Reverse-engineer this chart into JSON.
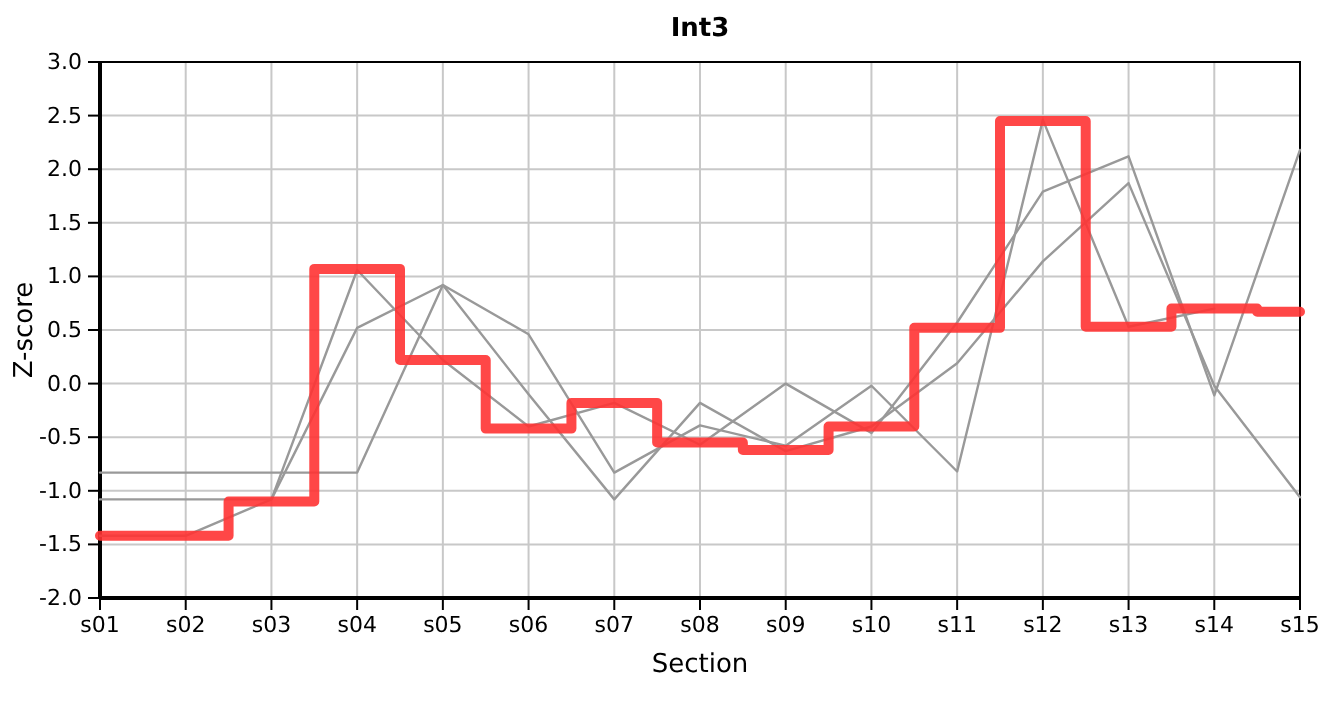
{
  "chart_data": {
    "type": "line",
    "title": "Int3",
    "xlabel": "Section",
    "ylabel": "Z-score",
    "categories": [
      "s01",
      "s02",
      "s03",
      "s04",
      "s05",
      "s06",
      "s07",
      "s08",
      "s09",
      "s10",
      "s11",
      "s12",
      "s13",
      "s14",
      "s15"
    ],
    "ylim": [
      -2,
      3
    ],
    "yticks": [
      {
        "value": -2,
        "label": "-2.0"
      },
      {
        "value": -1.5,
        "label": "-1.5"
      },
      {
        "value": -1,
        "label": "-1.0"
      },
      {
        "value": -0.5,
        "label": "-0.5"
      },
      {
        "value": 0,
        "label": "0.0"
      },
      {
        "value": 0.5,
        "label": "0.5"
      },
      {
        "value": 1,
        "label": "1.0"
      },
      {
        "value": 1.5,
        "label": "1.5"
      },
      {
        "value": 2,
        "label": "2.0"
      },
      {
        "value": 2.5,
        "label": "2.5"
      },
      {
        "value": 3,
        "label": "3.0"
      }
    ],
    "grid": true,
    "series": [
      {
        "color": "#999999",
        "values": [
          -0.83,
          -0.83,
          -0.83,
          -0.83,
          0.92,
          0.46,
          -0.83,
          -0.39,
          -0.58,
          -0.02,
          -0.82,
          2.46,
          0.53,
          0.7,
          null
        ]
      },
      {
        "color": "#999999",
        "values": [
          -1.08,
          -1.08,
          -1.08,
          1.06,
          0.22,
          -0.4,
          -0.18,
          -0.57,
          0.0,
          -0.46,
          0.57,
          1.79,
          2.12,
          -0.11,
          2.18
        ]
      },
      {
        "color": "#999999",
        "values": [
          -1.42,
          -1.42,
          -1.08,
          0.52,
          0.92,
          -0.1,
          -1.08,
          -0.18,
          -0.63,
          -0.4,
          0.19,
          1.14,
          1.87,
          -0.02,
          -1.06
        ]
      },
      {
        "type": "step",
        "color": "#ff3333",
        "values": [
          -1.42,
          -1.42,
          -1.1,
          1.07,
          0.22,
          -0.42,
          -0.18,
          -0.55,
          -0.62,
          -0.4,
          0.52,
          2.45,
          0.53,
          0.7,
          0.67
        ]
      }
    ]
  }
}
